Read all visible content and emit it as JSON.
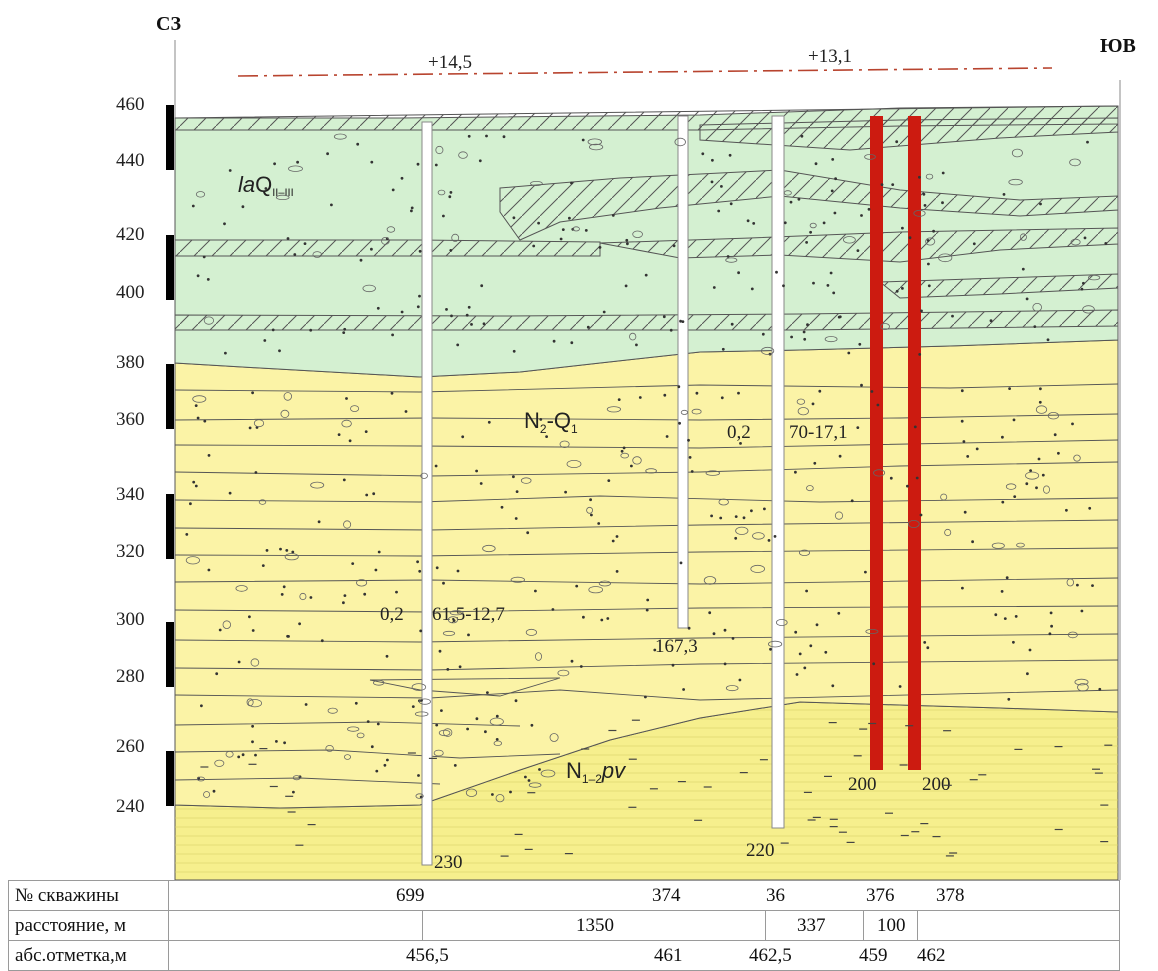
{
  "header": {
    "left_direction": "СЗ",
    "right_direction": "ЮВ"
  },
  "elevation_scale": [
    "460",
    "440",
    "420",
    "400",
    "380",
    "360",
    "340",
    "320",
    "300",
    "280",
    "260",
    "240"
  ],
  "water_levels": [
    {
      "label": "+14,5"
    },
    {
      "label": "+13,1"
    }
  ],
  "unit_labels": {
    "upper_main": "Q",
    "upper_prefix": "la",
    "upper_sub": "II–III",
    "middle_main_1": "N",
    "middle_sub_1": "2",
    "middle_main_2": "-Q",
    "middle_sub_2": "1",
    "lower_main": "N",
    "lower_sub": "1–2",
    "lower_suffix": "pv"
  },
  "annotations": {
    "well_699_test": {
      "a": "0,2",
      "b": "61,5-12,7"
    },
    "well_374_depth": "167,3",
    "well_36_test": {
      "a": "0,2",
      "b": "70-17,1"
    },
    "well_699_depth": "230",
    "well_36_depth": "220",
    "well_376_depth": "200",
    "well_378_depth": "200"
  },
  "table": {
    "row_wells": {
      "label": "№ скважины",
      "values": [
        "699",
        "374",
        "36",
        "376",
        "378"
      ]
    },
    "row_distance": {
      "label": "расстояние, м",
      "values": [
        "1350",
        "337",
        "100"
      ]
    },
    "row_elevation": {
      "label": "абс.отметка,м",
      "values": [
        "456,5",
        "461",
        "462,5",
        "459",
        "462"
      ]
    }
  },
  "colors": {
    "quaternary": "#d4f0d1",
    "n2q1": "#fbf3a6",
    "pavlodar": "#f6ef8d",
    "casing_red": "#cc1b10",
    "water_line": "#b8442f"
  }
}
